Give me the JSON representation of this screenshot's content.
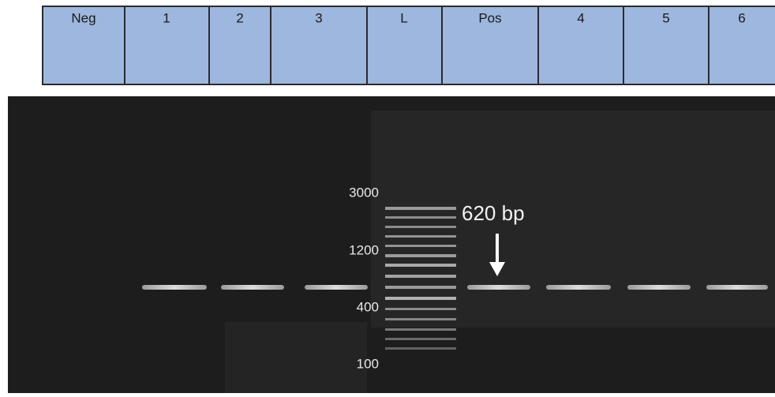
{
  "lanes": [
    "Neg",
    "1",
    "2",
    "3",
    "L",
    "Pos",
    "4",
    "5",
    "6"
  ],
  "ladder": {
    "labels": [
      3000,
      1200,
      400,
      100
    ]
  },
  "annotation": "620 bp"
}
